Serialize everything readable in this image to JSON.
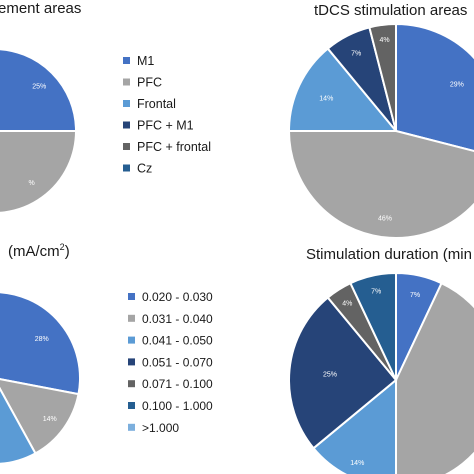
{
  "charts": {
    "c1_title": "ement areas",
    "c2_title": "tDCS stimulation areas",
    "c3_title_prefix": "(mA/cm",
    "c3_title_sup": "2",
    "c3_title_suffix": ")",
    "c4_title": "Stimulation duration (min"
  },
  "colors": {
    "blue": "#4472C4",
    "gray": "#A5A5A5",
    "lightblue": "#5B9BD5",
    "navy": "#264478",
    "darkgray": "#636363",
    "midblue": "#255E91",
    "verylightblue": "#7CAFDD"
  },
  "chart_data": [
    {
      "type": "pie",
      "title": "ement areas",
      "slices": [
        {
          "name": "M1",
          "value": 25,
          "label": "25%",
          "color": "#4472C4"
        },
        {
          "name": "PFC",
          "value": 30,
          "label": "%",
          "color": "#A5A5A5"
        }
      ],
      "legend": [
        "M1",
        "PFC",
        "Frontal",
        "PFC + M1",
        "PFC + frontal",
        "Cz"
      ],
      "legend_colors": [
        "#4472C4",
        "#A5A5A5",
        "#5B9BD5",
        "#264478",
        "#636363",
        "#255E91"
      ]
    },
    {
      "type": "pie",
      "title": "tDCS stimulation areas",
      "slices": [
        {
          "name": "M1",
          "value": 29,
          "label": "29%",
          "color": "#4472C4"
        },
        {
          "name": "PFC",
          "value": 46,
          "label": "46%",
          "color": "#A5A5A5"
        },
        {
          "name": "Frontal",
          "value": 14,
          "label": "14%",
          "color": "#5B9BD5"
        },
        {
          "name": "PFC + M1",
          "value": 7,
          "label": "7%",
          "color": "#264478"
        },
        {
          "name": "PFC + frontal",
          "value": 4,
          "label": "4%",
          "color": "#636363"
        }
      ]
    },
    {
      "type": "pie",
      "title": "(mA/cm2)",
      "slices": [
        {
          "name": "0.020 - 0.030",
          "value": 28,
          "label": "28%",
          "color": "#4472C4"
        },
        {
          "name": "0.031 - 0.040",
          "value": 14,
          "label": "14%",
          "color": "#A5A5A5"
        },
        {
          "name": "0.041 - 0.050",
          "value": 8,
          "label": "",
          "color": "#5B9BD5"
        }
      ],
      "legend": [
        "0.020 - 0.030",
        "0.031 - 0.040",
        "0.041 - 0.050",
        "0.051 - 0.070",
        "0.071 - 0.100",
        "0.100 - 1.000",
        ">1.000"
      ],
      "legend_colors": [
        "#4472C4",
        "#A5A5A5",
        "#5B9BD5",
        "#264478",
        "#636363",
        "#255E91",
        "#7CAFDD"
      ]
    },
    {
      "type": "pie",
      "title": "Stimulation duration (min",
      "slices": [
        {
          "value": 7,
          "label": "7%",
          "color": "#4472C4"
        },
        {
          "value": 43,
          "label": "",
          "color": "#A5A5A5"
        },
        {
          "value": 14,
          "label": "14%",
          "color": "#5B9BD5"
        },
        {
          "value": 25,
          "label": "25%",
          "color": "#264478"
        },
        {
          "value": 4,
          "label": "4%",
          "color": "#636363"
        },
        {
          "value": 7,
          "label": "7%",
          "color": "#255E91"
        }
      ]
    }
  ]
}
